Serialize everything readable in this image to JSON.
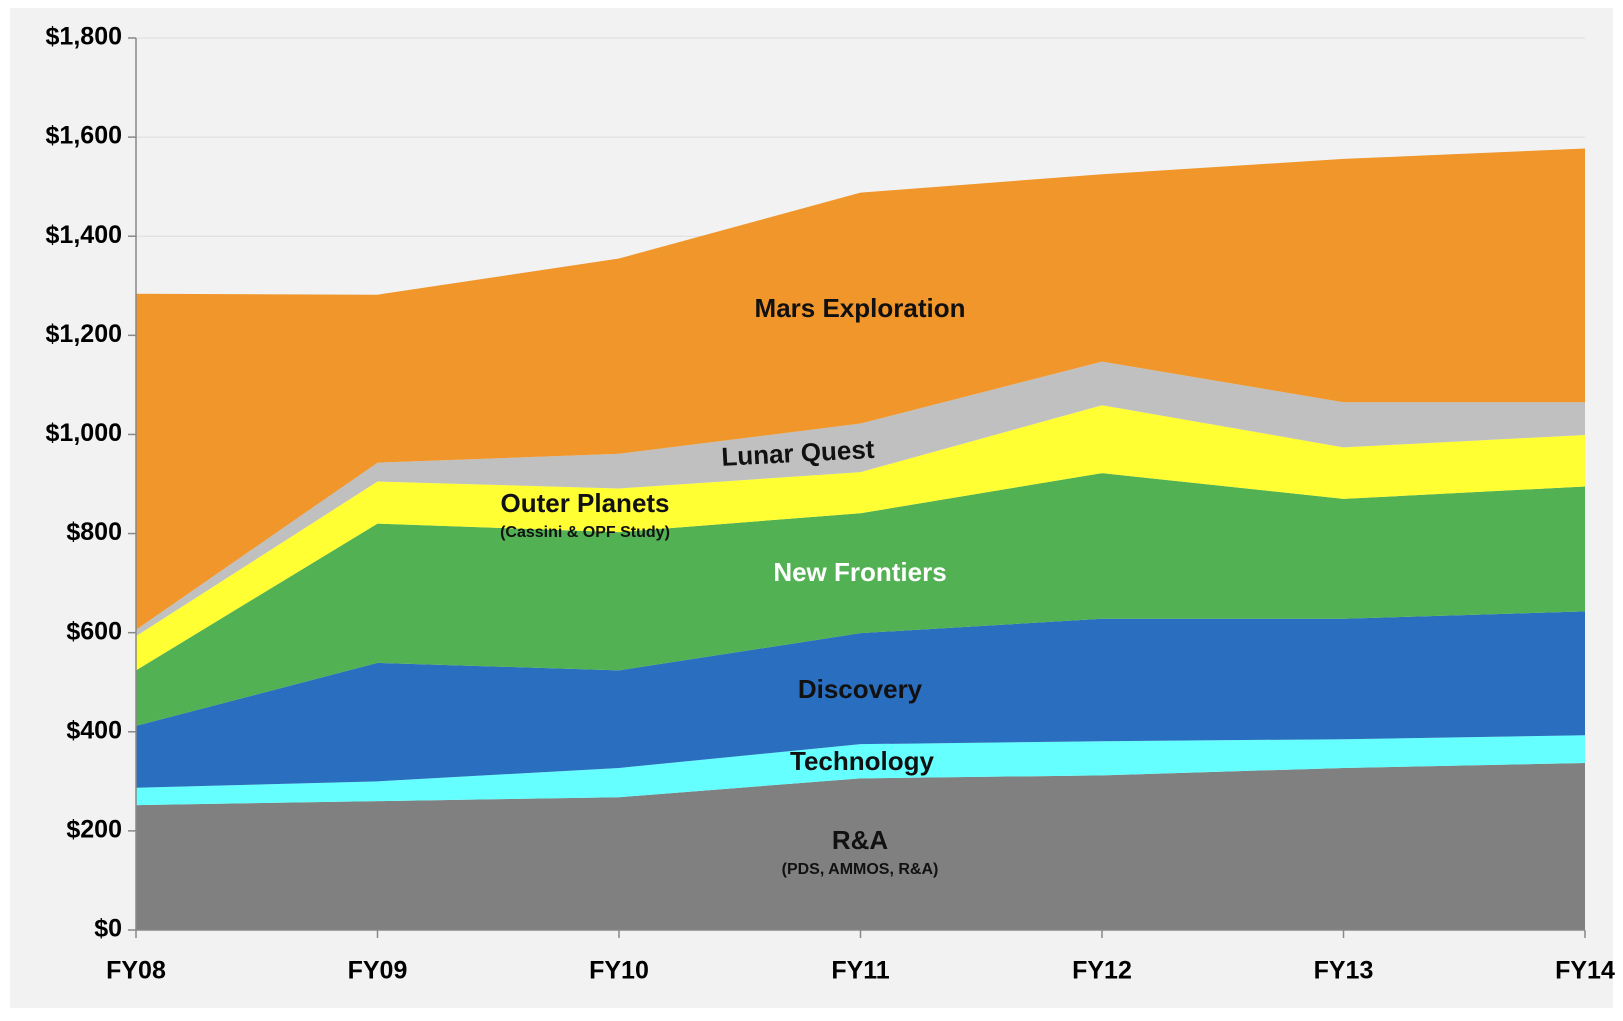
{
  "chart_data": {
    "type": "stacked_area",
    "categories": [
      "FY08",
      "FY09",
      "FY10",
      "FY11",
      "FY12",
      "FY13",
      "FY14"
    ],
    "series": [
      {
        "name": "R&A",
        "note": "(PDS, AMMOS, R&A)",
        "color": "#808080",
        "values": [
          252,
          260,
          268,
          306,
          312,
          327,
          337
        ]
      },
      {
        "name": "Technology",
        "color": "#66ffff",
        "values": [
          35,
          40,
          59,
          69,
          69,
          58,
          56
        ]
      },
      {
        "name": "Discovery",
        "color": "#2a6ebf",
        "values": [
          125,
          239,
          197,
          224,
          247,
          243,
          250
        ]
      },
      {
        "name": "New Frontiers",
        "color": "#52b152",
        "values": [
          112,
          281,
          279,
          242,
          294,
          242,
          252
        ]
      },
      {
        "name": "Outer Planets",
        "note": "(Cassini & OPF Study)",
        "color": "#ffff33",
        "values": [
          69,
          85,
          88,
          83,
          137,
          104,
          104
        ]
      },
      {
        "name": "Lunar Quest",
        "color": "#c0c0c0",
        "values": [
          13,
          38,
          70,
          98,
          88,
          91,
          66
        ]
      },
      {
        "name": "Mars Exploration",
        "color": "#f0962a",
        "values": [
          678,
          339,
          394,
          466,
          378,
          491,
          512
        ]
      }
    ],
    "ylim": [
      0,
      1800
    ],
    "yticks": [
      {
        "value": 0,
        "label": "$0"
      },
      {
        "value": 200,
        "label": "$200"
      },
      {
        "value": 400,
        "label": "$400"
      },
      {
        "value": 600,
        "label": "$600"
      },
      {
        "value": 800,
        "label": "$800"
      },
      {
        "value": 1000,
        "label": "$1,000"
      },
      {
        "value": 1200,
        "label": "$1,200"
      },
      {
        "value": 1400,
        "label": "$1,400"
      },
      {
        "value": 1600,
        "label": "$1,600"
      },
      {
        "value": 1800,
        "label": "$1,800"
      }
    ],
    "grid": true
  }
}
